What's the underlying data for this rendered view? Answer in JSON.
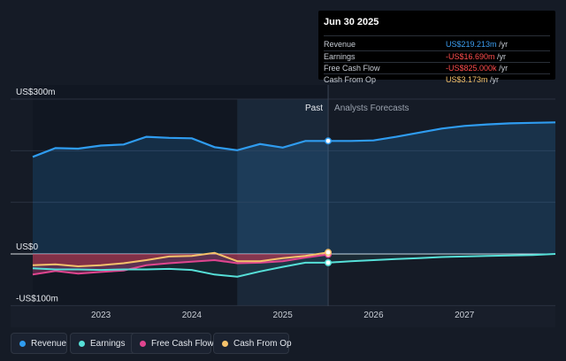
{
  "colors": {
    "revenue": "#2f9cf0",
    "earnings": "#56e0d8",
    "free_cash_flow": "#e0458f",
    "cash_from_op": "#f5c26b",
    "background": "#151b26"
  },
  "tooltip": {
    "date": "Jun 30 2025",
    "rows": [
      {
        "label": "Revenue",
        "value": "US$219.213m",
        "unit": "/yr",
        "color": "#3b9df0"
      },
      {
        "label": "Earnings",
        "value": "-US$16.690m",
        "unit": "/yr",
        "color": "#ff4d4d"
      },
      {
        "label": "Free Cash Flow",
        "value": "-US$825.000k",
        "unit": "/yr",
        "color": "#ff4d4d"
      },
      {
        "label": "Cash From Op",
        "value": "US$3.173m",
        "unit": "/yr",
        "color": "#f5c26b"
      }
    ]
  },
  "legend": [
    {
      "label": "Revenue",
      "color": "#2f9cf0"
    },
    {
      "label": "Earnings",
      "color": "#56e0d8"
    },
    {
      "label": "Free Cash Flow",
      "color": "#e0458f"
    },
    {
      "label": "Cash From Op",
      "color": "#f5c26b"
    }
  ],
  "chart_data": {
    "type": "line",
    "y_tick_labels": [
      "US$300m",
      "US$0",
      "-US$100m"
    ],
    "ylim": [
      -100,
      300
    ],
    "xlim": [
      2022.25,
      2028.0
    ],
    "x_tick_labels": [
      "2023",
      "2024",
      "2025",
      "2026",
      "2027"
    ],
    "x_ticks": [
      2023,
      2024,
      2025,
      2026,
      2027
    ],
    "past_label": "Past",
    "forecast_label": "Analysts Forecasts",
    "divider_x": 2025.5,
    "highlight_range": [
      2024.5,
      2025.5
    ],
    "series": [
      {
        "name": "Revenue",
        "x": [
          2022.25,
          2022.5,
          2022.75,
          2023.0,
          2023.25,
          2023.5,
          2023.75,
          2024.0,
          2024.25,
          2024.5,
          2024.75,
          2025.0,
          2025.25,
          2025.5,
          2025.75,
          2026.0,
          2026.25,
          2026.5,
          2026.75,
          2027.0,
          2027.25,
          2027.5,
          2027.75,
          2028.0
        ],
        "y": [
          188,
          205,
          204,
          210,
          212,
          227,
          225,
          224,
          207,
          201,
          213,
          206,
          219,
          219,
          219,
          220,
          227,
          235,
          243,
          248,
          251,
          253,
          254,
          255
        ]
      },
      {
        "name": "Earnings",
        "x": [
          2022.25,
          2022.5,
          2022.75,
          2023.0,
          2023.25,
          2023.5,
          2023.75,
          2024.0,
          2024.25,
          2024.5,
          2024.75,
          2025.0,
          2025.25,
          2025.5,
          2025.75,
          2026.0,
          2026.25,
          2026.5,
          2026.75,
          2027.0,
          2027.25,
          2027.5,
          2027.75,
          2028.0
        ],
        "y": [
          -28,
          -30,
          -30,
          -31,
          -30,
          -30,
          -29,
          -31,
          -40,
          -44,
          -34,
          -25,
          -17,
          -17,
          -14,
          -12,
          -10,
          -8,
          -6,
          -5,
          -4,
          -3,
          -2,
          0
        ]
      },
      {
        "name": "Free Cash Flow",
        "x": [
          2022.25,
          2022.5,
          2022.75,
          2023.0,
          2023.25,
          2023.5,
          2023.75,
          2024.0,
          2024.25,
          2024.5,
          2024.75,
          2025.0,
          2025.25,
          2025.5
        ],
        "y": [
          -40,
          -33,
          -38,
          -35,
          -32,
          -22,
          -18,
          -15,
          -12,
          -18,
          -17,
          -14,
          -7,
          -1
        ]
      },
      {
        "name": "Cash From Op",
        "x": [
          2022.25,
          2022.5,
          2022.75,
          2023.0,
          2023.25,
          2023.5,
          2023.75,
          2024.0,
          2024.25,
          2024.5,
          2024.75,
          2025.0,
          2025.25,
          2025.5
        ],
        "y": [
          -22,
          -20,
          -24,
          -22,
          -18,
          -12,
          -5,
          -4,
          2,
          -14,
          -14,
          -8,
          -4,
          3
        ]
      }
    ]
  }
}
